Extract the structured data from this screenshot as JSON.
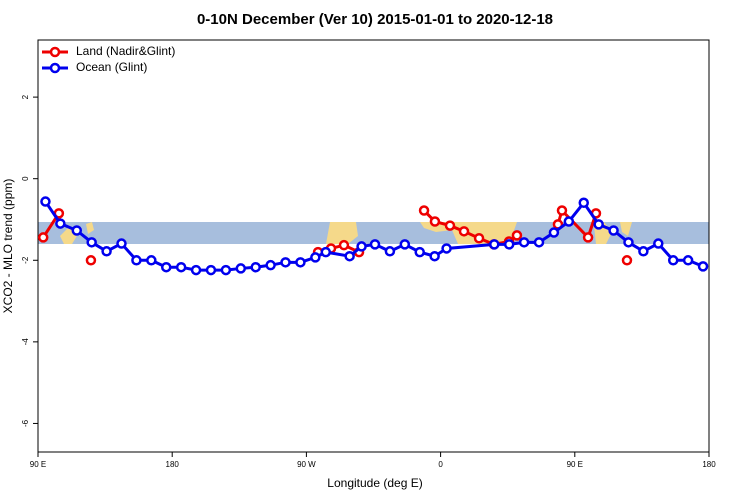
{
  "chart_data": {
    "type": "line",
    "title": "0-10N December (Ver 10)   2015-01-01 to 2020-12-18",
    "xlabel": "Longitude (deg E)",
    "ylabel": "XCO2 - MLO trend (ppm)",
    "xlim": [
      90,
      540
    ],
    "ylim": [
      -6.7,
      3.4
    ],
    "xticks": [
      {
        "value": 90,
        "label": "90 E"
      },
      180,
      {
        "value": 270,
        "label": "90 W"
      },
      {
        "value": 360,
        "label": "0"
      },
      {
        "value": 450,
        "label": "90 E"
      },
      {
        "value": 540,
        "label": "180"
      }
    ],
    "yticks": [
      2,
      0,
      -2,
      -4,
      -6
    ],
    "legend": "top-left",
    "series": [
      {
        "name": "Land (Nadir&Glint)",
        "color": "#ee0000",
        "x": [
          93.5,
          104,
          null,
          125.5,
          null,
          277.8,
          286.5,
          295.2,
          305.3,
          null,
          348.9,
          356.2,
          366.3,
          375.7,
          385.8,
          395.8,
          405.9,
          411.2,
          null,
          438.7,
          441.4,
          458.9,
          464.2,
          null,
          485
        ],
        "values": [
          -1.44,
          -0.85,
          null,
          -2.0,
          null,
          -1.8,
          -1.71,
          -1.63,
          -1.8,
          null,
          -0.78,
          -1.05,
          -1.15,
          -1.29,
          -1.46,
          -1.61,
          -1.54,
          -1.39,
          null,
          -1.12,
          -0.78,
          -1.44,
          -0.85,
          null,
          -2.0
        ]
      },
      {
        "name": "Ocean (Glint)",
        "color": "#0000ee",
        "x": [
          95,
          105,
          116,
          126,
          136,
          146,
          156,
          166,
          176,
          186,
          196,
          206,
          216,
          226,
          236,
          246,
          256,
          266,
          276,
          283,
          299,
          307,
          316,
          326,
          336,
          346,
          356,
          364,
          396,
          406,
          416,
          426,
          436,
          446,
          456,
          466,
          476,
          486,
          496,
          506,
          516,
          526,
          536
        ],
        "values": [
          -0.56,
          -1.1,
          -1.27,
          -1.56,
          -1.78,
          -1.59,
          -2.0,
          -2.0,
          -2.17,
          -2.17,
          -2.24,
          -2.24,
          -2.24,
          -2.2,
          -2.17,
          -2.12,
          -2.05,
          -2.05,
          -1.93,
          -1.8,
          -1.9,
          -1.66,
          -1.61,
          -1.78,
          -1.61,
          -1.8,
          -1.9,
          -1.71,
          -1.61,
          -1.61,
          -1.56,
          -1.56,
          -1.32,
          -1.05,
          -0.59,
          -1.12,
          -1.27,
          -1.56,
          -1.78,
          -1.59,
          -2.0,
          -2.0,
          -2.15
        ]
      }
    ]
  }
}
